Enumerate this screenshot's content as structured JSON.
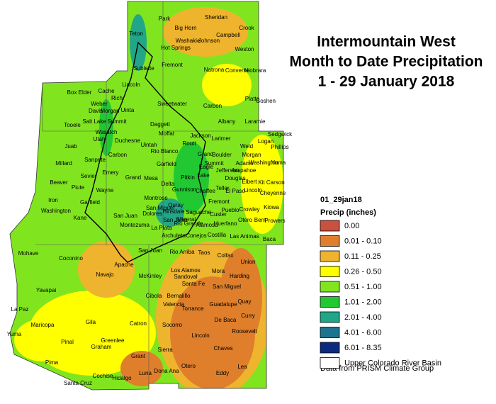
{
  "title": [
    "Intermountain West",
    "Month to Date Precipitation",
    "1 - 29 January 2018"
  ],
  "legend": {
    "heading": "01_29jan18",
    "subheading": "Precip (inches)",
    "items": [
      {
        "label": "0.00",
        "color": "#c9513d"
      },
      {
        "label": "0.01 - 0.10",
        "color": "#df7f2b"
      },
      {
        "label": "0.11 - 0.25",
        "color": "#efb42d"
      },
      {
        "label": "0.26 - 0.50",
        "color": "#ffff00"
      },
      {
        "label": "0.51 - 1.00",
        "color": "#80e51f"
      },
      {
        "label": "1.01 - 2.00",
        "color": "#22c832"
      },
      {
        "label": "2.01 - 4.00",
        "color": "#22a688"
      },
      {
        "label": "4.01 - 6.00",
        "color": "#1b7591"
      },
      {
        "label": "6.01 - 8.35",
        "color": "#0c2a7e"
      },
      {
        "label": "Upper Colorado River Basin",
        "color": "#ffffff"
      }
    ]
  },
  "source": "Data from PRISM Climate Group",
  "counties": [
    "Park",
    "Sheridan",
    "Crook",
    "Big Horn",
    "Campbell",
    "Washakie",
    "Johnson",
    "Hot Springs",
    "Weston",
    "Teton",
    "Fremont",
    "Sublette",
    "Natrona",
    "Converse",
    "Niobrara",
    "Lincoln",
    "Box Elder",
    "Cache",
    "Rich",
    "Sweetwater",
    "Carbon",
    "Platte",
    "Goshen",
    "Weber",
    "Davis",
    "Morgan",
    "Uinta",
    "Summit",
    "Salt Lake",
    "Tooele",
    "Daggett",
    "Albany",
    "Laramie",
    "Wasatch",
    "Duchesne",
    "Moffat",
    "Jackson",
    "Larimer",
    "Logan",
    "Sedgwick",
    "Phillips",
    "Utah",
    "Uintah",
    "Routt",
    "Weld",
    "Juab",
    "Carbon",
    "Rio Blanco",
    "Grand",
    "Boulder",
    "Morgan",
    "Millard",
    "Sanpete",
    "Emery",
    "Garfield",
    "Eagle",
    "Summit",
    "Adams",
    "Washington",
    "Yuma",
    "Jefferson",
    "Arapahoe",
    "Sevier",
    "Grand",
    "Mesa",
    "Pitkin",
    "Lake",
    "Douglas",
    "Delta",
    "Elbert",
    "Kit Carson",
    "Beaver",
    "Piute",
    "Gunnison",
    "Chaffee",
    "Teller",
    "El Paso",
    "Lincoln",
    "Cheyenne",
    "Wayne",
    "Iron",
    "Garfield",
    "Montrose",
    "Fremont",
    "Kiowa",
    "Washington",
    "San Miguel",
    "Ouray",
    "Crowley",
    "Pueblo",
    "Dolores",
    "Hinsdale",
    "Saguache",
    "Custer",
    "Kane",
    "San Juan",
    "San Juan",
    "Mineral",
    "Otero",
    "Bent",
    "Prowers",
    "Montezuma",
    "La Plata",
    "Rio Grande",
    "Alamosa",
    "Huerfano",
    "Archuleta",
    "Conejos",
    "Costilla",
    "Las Animas",
    "Baca",
    "Mohave",
    "Coconino",
    "San Juan",
    "Rio Arriba",
    "Taos",
    "Colfax",
    "Union",
    "Navajo",
    "Apache",
    "McKinley",
    "Los Alamos",
    "Sandoval",
    "Mora",
    "Harding",
    "Santa Fe",
    "San Miguel",
    "Yavapai",
    "Cibola",
    "Bernalillo",
    "Valencia",
    "Torrance",
    "Guadalupe",
    "Quay",
    "La Paz",
    "Gila",
    "Catron",
    "Socorro",
    "De Baca",
    "Curry",
    "Maricopa",
    "Roosevelt",
    "Yuma",
    "Lincoln",
    "Pinal",
    "Greenlee",
    "Graham",
    "Chaves",
    "Sierra",
    "Grant",
    "Pima",
    "Otero",
    "Lea",
    "Cochise",
    "Hidalgo",
    "Luna",
    "Dona Ana",
    "Eddy",
    "Santa Cruz"
  ]
}
